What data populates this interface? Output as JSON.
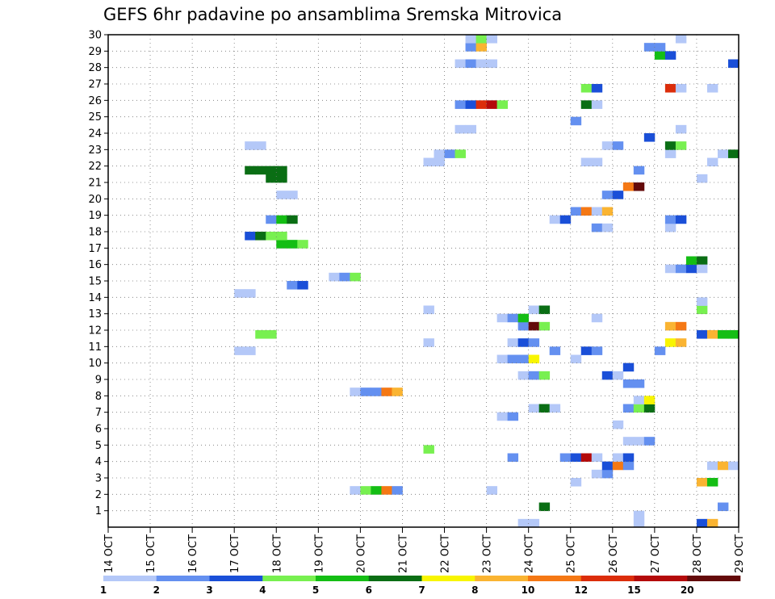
{
  "chart_data": {
    "type": "heatmap",
    "title": "GEFS 6hr padavine po ansamblima Sremska Mitrovica",
    "xlabel": "",
    "ylabel": "",
    "x_unit": "6-hour step since 14 OCT 00Z",
    "xlim": [
      0,
      60
    ],
    "ylim": [
      0,
      30
    ],
    "x_ticks": [
      {
        "step": 0,
        "label": "14 OCT"
      },
      {
        "step": 4,
        "label": "15 OCT"
      },
      {
        "step": 8,
        "label": "16 OCT"
      },
      {
        "step": 12,
        "label": "17 OCT"
      },
      {
        "step": 16,
        "label": "18 OCT"
      },
      {
        "step": 20,
        "label": "19 OCT"
      },
      {
        "step": 24,
        "label": "20 OCT"
      },
      {
        "step": 28,
        "label": "21 OCT"
      },
      {
        "step": 32,
        "label": "22 OCT"
      },
      {
        "step": 36,
        "label": "23 OCT"
      },
      {
        "step": 40,
        "label": "24 OCT"
      },
      {
        "step": 44,
        "label": "25 OCT"
      },
      {
        "step": 48,
        "label": "26 OCT"
      },
      {
        "step": 52,
        "label": "27 OCT"
      },
      {
        "step": 56,
        "label": "28 OCT"
      },
      {
        "step": 60,
        "label": "29 OCT"
      }
    ],
    "y_ticks": [
      "1",
      "2",
      "3",
      "4",
      "5",
      "6",
      "7",
      "8",
      "9",
      "10",
      "11",
      "12",
      "13",
      "14",
      "15",
      "16",
      "17",
      "18",
      "19",
      "20",
      "21",
      "22",
      "23",
      "24",
      "25",
      "26",
      "27",
      "28",
      "29",
      "30"
    ],
    "colorbar": {
      "colors": [
        "#b4c8f8",
        "#6490f0",
        "#1a4fd8",
        "#78f050",
        "#14be14",
        "#0a6e14",
        "#f8f500",
        "#fab432",
        "#f57814",
        "#dc2d0a",
        "#b40a0a",
        "#640a0a"
      ],
      "labels": [
        "1",
        "2",
        "3",
        "4",
        "5",
        "6",
        "7",
        "8",
        "10",
        "12",
        "15",
        "20"
      ]
    },
    "cells": [
      {
        "step": 41,
        "member": 2,
        "color": 5
      },
      {
        "step": 50,
        "member": 0,
        "color": 0
      },
      {
        "step": 50,
        "member": 1,
        "color": 0
      },
      {
        "step": 12,
        "member": 21,
        "color": 0
      },
      {
        "step": 13,
        "member": 21,
        "color": 0
      },
      {
        "step": 14,
        "member": 23,
        "color": 3
      },
      {
        "step": 15,
        "member": 23,
        "color": 3
      },
      {
        "step": 12,
        "member": 28,
        "color": 0
      },
      {
        "step": 13,
        "member": 28,
        "color": 0
      },
      {
        "step": 17,
        "member": 29,
        "color": 1
      },
      {
        "step": 18,
        "member": 29,
        "color": 2
      },
      {
        "step": 21,
        "member": 30,
        "color": 0
      },
      {
        "step": 22,
        "member": 30,
        "color": 1
      },
      {
        "step": 23,
        "member": 30,
        "color": 3
      },
      {
        "step": 16,
        "member": 34,
        "color": 4
      },
      {
        "step": 17,
        "member": 34,
        "color": 4
      },
      {
        "step": 18,
        "member": 34,
        "color": 3
      },
      {
        "step": 13,
        "member": 35,
        "color": 2
      },
      {
        "step": 14,
        "member": 35,
        "color": 5
      },
      {
        "step": 15,
        "member": 35,
        "color": 3
      },
      {
        "step": 16,
        "member": 35,
        "color": 3
      },
      {
        "step": 15,
        "member": 37,
        "color": 1
      },
      {
        "step": 16,
        "member": 37,
        "color": 4
      },
      {
        "step": 17,
        "member": 37,
        "color": 5
      },
      {
        "step": 16,
        "member": 40,
        "color": 0
      },
      {
        "step": 17,
        "member": 40,
        "color": 0
      },
      {
        "step": 15,
        "member": 42,
        "color": 5
      },
      {
        "step": 16,
        "member": 42,
        "color": 5
      },
      {
        "step": 13,
        "member": 43,
        "color": 5
      },
      {
        "step": 14,
        "member": 43,
        "color": 5
      },
      {
        "step": 15,
        "member": 43,
        "color": 5
      },
      {
        "step": 16,
        "member": 43,
        "color": 5
      },
      {
        "step": 13,
        "member": 46,
        "color": 0
      },
      {
        "step": 14,
        "member": 46,
        "color": 0
      },
      {
        "step": 30,
        "member": 9,
        "color": 3
      },
      {
        "step": 23,
        "member": 4,
        "color": 0
      },
      {
        "step": 24,
        "member": 4,
        "color": 3
      },
      {
        "step": 25,
        "member": 4,
        "color": 4
      },
      {
        "step": 26,
        "member": 4,
        "color": 8
      },
      {
        "step": 27,
        "member": 4,
        "color": 1
      },
      {
        "step": 23,
        "member": 16,
        "color": 0
      },
      {
        "step": 24,
        "member": 16,
        "color": 1
      },
      {
        "step": 25,
        "member": 16,
        "color": 1
      },
      {
        "step": 26,
        "member": 16,
        "color": 8
      },
      {
        "step": 27,
        "member": 16,
        "color": 7
      },
      {
        "step": 30,
        "member": 22,
        "color": 0
      },
      {
        "step": 30,
        "member": 26,
        "color": 0
      },
      {
        "step": 36,
        "member": 4,
        "color": 0
      },
      {
        "step": 30,
        "member": 44,
        "color": 0
      },
      {
        "step": 31,
        "member": 44,
        "color": 0
      },
      {
        "step": 31,
        "member": 45,
        "color": 0
      },
      {
        "step": 32,
        "member": 45,
        "color": 1
      },
      {
        "step": 33,
        "member": 45,
        "color": 3
      },
      {
        "step": 33,
        "member": 48,
        "color": 0
      },
      {
        "step": 34,
        "member": 48,
        "color": 0
      },
      {
        "step": 33,
        "member": 51,
        "color": 1
      },
      {
        "step": 34,
        "member": 51,
        "color": 2
      },
      {
        "step": 35,
        "member": 51,
        "color": 9
      },
      {
        "step": 36,
        "member": 51,
        "color": 10
      },
      {
        "step": 37,
        "member": 51,
        "color": 3
      },
      {
        "step": 33,
        "member": 56,
        "color": 0
      },
      {
        "step": 34,
        "member": 56,
        "color": 1
      },
      {
        "step": 35,
        "member": 56,
        "color": 0
      },
      {
        "step": 36,
        "member": 56,
        "color": 0
      },
      {
        "step": 34,
        "member": 58,
        "color": 1
      },
      {
        "step": 35,
        "member": 58,
        "color": 7
      },
      {
        "step": 34,
        "member": 59,
        "color": 0
      },
      {
        "step": 35,
        "member": 59,
        "color": 3
      },
      {
        "step": 36,
        "member": 59,
        "color": 0
      },
      {
        "step": 39,
        "member": 0,
        "color": 0
      },
      {
        "step": 40,
        "member": 0,
        "color": 0
      },
      {
        "step": 38,
        "member": 8,
        "color": 1
      },
      {
        "step": 37,
        "member": 13,
        "color": 0
      },
      {
        "step": 38,
        "member": 13,
        "color": 1
      },
      {
        "step": 40,
        "member": 14,
        "color": 0
      },
      {
        "step": 41,
        "member": 14,
        "color": 5
      },
      {
        "step": 42,
        "member": 14,
        "color": 0
      },
      {
        "step": 39,
        "member": 18,
        "color": 0
      },
      {
        "step": 40,
        "member": 18,
        "color": 1
      },
      {
        "step": 41,
        "member": 18,
        "color": 3
      },
      {
        "step": 37,
        "member": 20,
        "color": 0
      },
      {
        "step": 38,
        "member": 20,
        "color": 1
      },
      {
        "step": 39,
        "member": 20,
        "color": 1
      },
      {
        "step": 40,
        "member": 20,
        "color": 6
      },
      {
        "step": 42,
        "member": 21,
        "color": 1
      },
      {
        "step": 38,
        "member": 22,
        "color": 0
      },
      {
        "step": 39,
        "member": 22,
        "color": 2
      },
      {
        "step": 40,
        "member": 22,
        "color": 1
      },
      {
        "step": 39,
        "member": 24,
        "color": 1
      },
      {
        "step": 40,
        "member": 24,
        "color": 11
      },
      {
        "step": 41,
        "member": 24,
        "color": 3
      },
      {
        "step": 37,
        "member": 25,
        "color": 0
      },
      {
        "step": 38,
        "member": 25,
        "color": 1
      },
      {
        "step": 39,
        "member": 25,
        "color": 4
      },
      {
        "step": 40,
        "member": 26,
        "color": 0
      },
      {
        "step": 41,
        "member": 26,
        "color": 5
      },
      {
        "step": 44,
        "member": 5,
        "color": 0
      },
      {
        "step": 43,
        "member": 8,
        "color": 1
      },
      {
        "step": 44,
        "member": 8,
        "color": 2
      },
      {
        "step": 45,
        "member": 8,
        "color": 10
      },
      {
        "step": 46,
        "member": 8,
        "color": 0
      },
      {
        "step": 46,
        "member": 6,
        "color": 0
      },
      {
        "step": 47,
        "member": 6,
        "color": 1
      },
      {
        "step": 47,
        "member": 7,
        "color": 2
      },
      {
        "step": 48,
        "member": 7,
        "color": 8
      },
      {
        "step": 49,
        "member": 7,
        "color": 1
      },
      {
        "step": 48,
        "member": 8,
        "color": 0
      },
      {
        "step": 49,
        "member": 8,
        "color": 2
      },
      {
        "step": 49,
        "member": 10,
        "color": 0
      },
      {
        "step": 50,
        "member": 10,
        "color": 0
      },
      {
        "step": 51,
        "member": 10,
        "color": 1
      },
      {
        "step": 48,
        "member": 12,
        "color": 0
      },
      {
        "step": 49,
        "member": 14,
        "color": 1
      },
      {
        "step": 50,
        "member": 14,
        "color": 3
      },
      {
        "step": 51,
        "member": 14,
        "color": 5
      },
      {
        "step": 50,
        "member": 15,
        "color": 0
      },
      {
        "step": 51,
        "member": 15,
        "color": 6
      },
      {
        "step": 49,
        "member": 17,
        "color": 1
      },
      {
        "step": 50,
        "member": 17,
        "color": 1
      },
      {
        "step": 47,
        "member": 18,
        "color": 2
      },
      {
        "step": 48,
        "member": 18,
        "color": 0
      },
      {
        "step": 49,
        "member": 19,
        "color": 2
      },
      {
        "step": 44,
        "member": 20,
        "color": 0
      },
      {
        "step": 45,
        "member": 21,
        "color": 2
      },
      {
        "step": 46,
        "member": 21,
        "color": 1
      },
      {
        "step": 46,
        "member": 25,
        "color": 0
      },
      {
        "step": 46,
        "member": 36,
        "color": 1
      },
      {
        "step": 47,
        "member": 36,
        "color": 0
      },
      {
        "step": 42,
        "member": 37,
        "color": 0
      },
      {
        "step": 43,
        "member": 37,
        "color": 2
      },
      {
        "step": 44,
        "member": 38,
        "color": 1
      },
      {
        "step": 45,
        "member": 38,
        "color": 8
      },
      {
        "step": 46,
        "member": 38,
        "color": 0
      },
      {
        "step": 47,
        "member": 38,
        "color": 7
      },
      {
        "step": 47,
        "member": 40,
        "color": 1
      },
      {
        "step": 48,
        "member": 40,
        "color": 2
      },
      {
        "step": 49,
        "member": 41,
        "color": 8
      },
      {
        "step": 50,
        "member": 41,
        "color": 11
      },
      {
        "step": 50,
        "member": 43,
        "color": 1
      },
      {
        "step": 45,
        "member": 44,
        "color": 0
      },
      {
        "step": 46,
        "member": 44,
        "color": 0
      },
      {
        "step": 47,
        "member": 46,
        "color": 0
      },
      {
        "step": 48,
        "member": 46,
        "color": 1
      },
      {
        "step": 51,
        "member": 47,
        "color": 2
      },
      {
        "step": 44,
        "member": 49,
        "color": 1
      },
      {
        "step": 45,
        "member": 51,
        "color": 5
      },
      {
        "step": 46,
        "member": 51,
        "color": 0
      },
      {
        "step": 45,
        "member": 53,
        "color": 3
      },
      {
        "step": 46,
        "member": 53,
        "color": 2
      },
      {
        "step": 52,
        "member": 57,
        "color": 4
      },
      {
        "step": 51,
        "member": 58,
        "color": 1
      },
      {
        "step": 52,
        "member": 58,
        "color": 1
      },
      {
        "step": 52,
        "member": 21,
        "color": 1
      },
      {
        "step": 53,
        "member": 22,
        "color": 6
      },
      {
        "step": 54,
        "member": 22,
        "color": 7
      },
      {
        "step": 53,
        "member": 24,
        "color": 7
      },
      {
        "step": 54,
        "member": 24,
        "color": 8
      },
      {
        "step": 53,
        "member": 31,
        "color": 0
      },
      {
        "step": 54,
        "member": 31,
        "color": 1
      },
      {
        "step": 55,
        "member": 31,
        "color": 2
      },
      {
        "step": 55,
        "member": 32,
        "color": 4
      },
      {
        "step": 56,
        "member": 32,
        "color": 5
      },
      {
        "step": 53,
        "member": 36,
        "color": 0
      },
      {
        "step": 53,
        "member": 37,
        "color": 1
      },
      {
        "step": 54,
        "member": 37,
        "color": 2
      },
      {
        "step": 53,
        "member": 45,
        "color": 0
      },
      {
        "step": 53,
        "member": 46,
        "color": 5
      },
      {
        "step": 54,
        "member": 46,
        "color": 3
      },
      {
        "step": 54,
        "member": 48,
        "color": 0
      },
      {
        "step": 53,
        "member": 53,
        "color": 9
      },
      {
        "step": 54,
        "member": 53,
        "color": 0
      },
      {
        "step": 53,
        "member": 57,
        "color": 2
      },
      {
        "step": 54,
        "member": 59,
        "color": 0
      },
      {
        "step": 56,
        "member": 0,
        "color": 2
      },
      {
        "step": 57,
        "member": 0,
        "color": 7
      },
      {
        "step": 58,
        "member": 2,
        "color": 1
      },
      {
        "step": 56,
        "member": 5,
        "color": 7
      },
      {
        "step": 57,
        "member": 5,
        "color": 4
      },
      {
        "step": 57,
        "member": 7,
        "color": 0
      },
      {
        "step": 58,
        "member": 7,
        "color": 7
      },
      {
        "step": 59,
        "member": 7,
        "color": 0
      },
      {
        "step": 56,
        "member": 23,
        "color": 2
      },
      {
        "step": 57,
        "member": 23,
        "color": 7
      },
      {
        "step": 58,
        "member": 23,
        "color": 4
      },
      {
        "step": 59,
        "member": 23,
        "color": 4
      },
      {
        "step": 56,
        "member": 31,
        "color": 0
      },
      {
        "step": 56,
        "member": 42,
        "color": 0
      },
      {
        "step": 57,
        "member": 44,
        "color": 0
      },
      {
        "step": 58,
        "member": 45,
        "color": 0
      },
      {
        "step": 59,
        "member": 45,
        "color": 5
      },
      {
        "step": 57,
        "member": 53,
        "color": 0
      },
      {
        "step": 59,
        "member": 56,
        "color": 2
      },
      {
        "step": 56,
        "member": 26,
        "color": 3
      },
      {
        "step": 56,
        "member": 27,
        "color": 0
      }
    ]
  }
}
